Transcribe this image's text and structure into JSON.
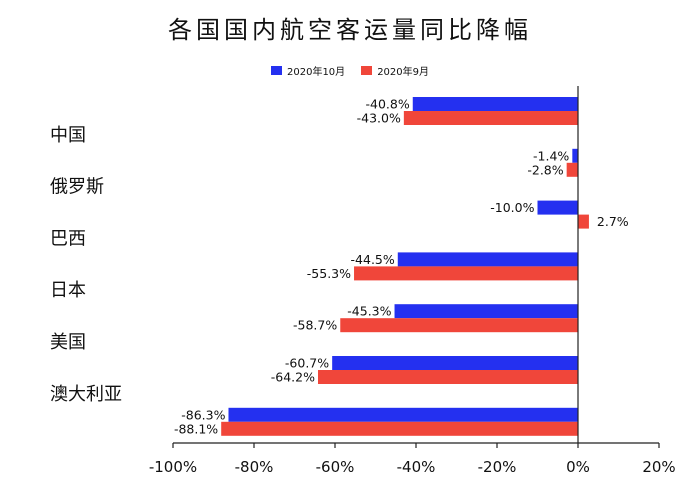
{
  "chart_data": {
    "type": "bar",
    "orientation": "horizontal",
    "title": "各国国内航空客运量同比降幅",
    "categories": [
      "",
      "中国",
      "俄罗斯",
      "巴西",
      "日本",
      "美国",
      "澳大利亚"
    ],
    "series": [
      {
        "name": "2020年10月",
        "color": "#2430f0",
        "values": [
          -40.8,
          -1.4,
          -10.0,
          -44.5,
          -45.3,
          -60.7,
          -86.3
        ],
        "labels": [
          "-40.8%",
          "-1.4%",
          "-10.0%",
          "-44.5%",
          "-45.3%",
          "-60.7%",
          "-86.3%"
        ]
      },
      {
        "name": "2020年9月",
        "color": "#f0463a",
        "values": [
          -43.0,
          -2.8,
          2.7,
          -55.3,
          -58.7,
          -64.2,
          -88.1
        ],
        "labels": [
          "-43.0%",
          "-2.8%",
          "2.7%",
          "-55.3%",
          "-58.7%",
          "-64.2%",
          "-88.1%"
        ]
      }
    ],
    "xlim": [
      -100,
      20
    ],
    "xticks": [
      -100,
      -80,
      -60,
      -40,
      -20,
      0,
      20
    ],
    "xtick_labels": [
      "-100%",
      "-80%",
      "-60%",
      "-40%",
      "-20%",
      "0%",
      "20%"
    ],
    "grid": false,
    "legend_position": "top-center"
  }
}
